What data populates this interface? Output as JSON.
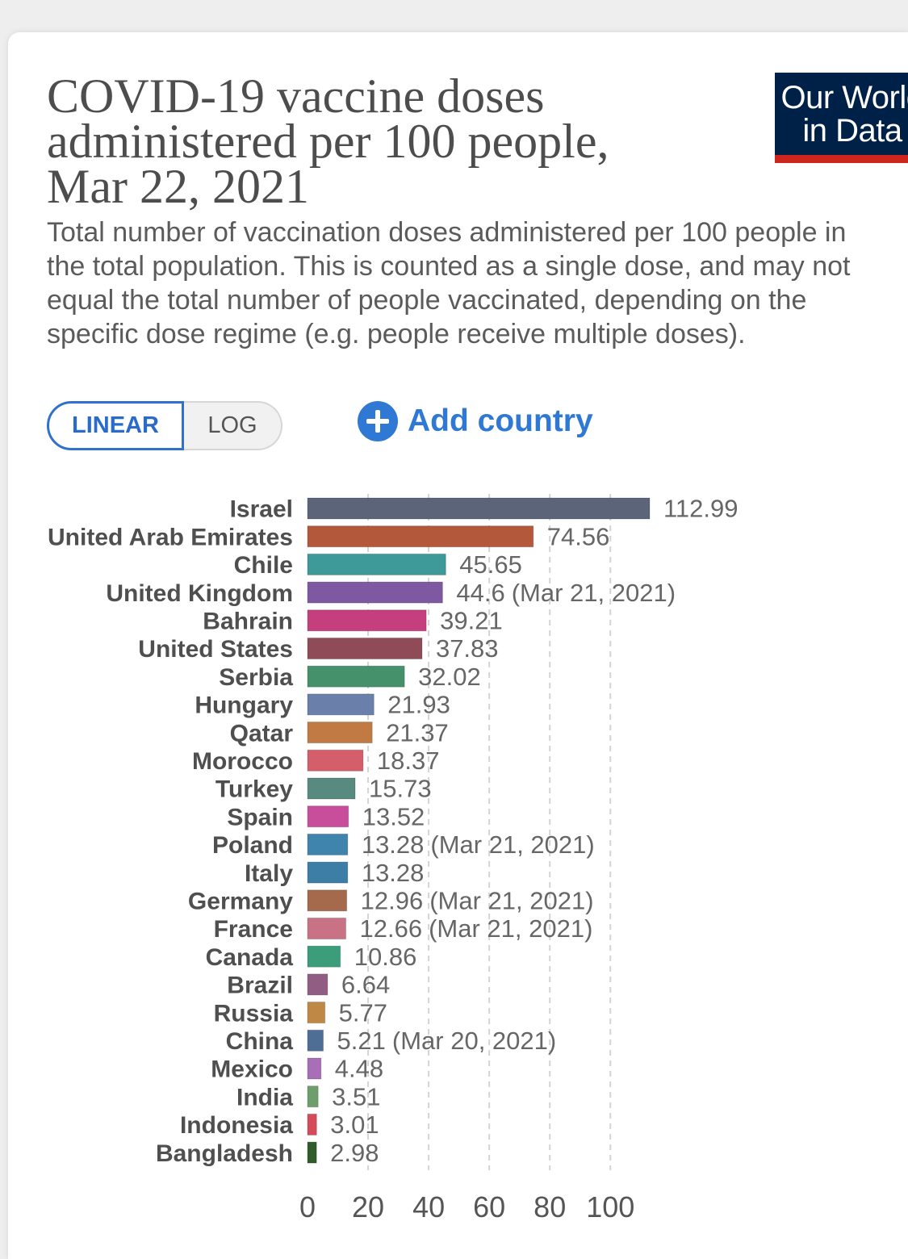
{
  "logo": {
    "line1": "Our World",
    "line2": "in Data",
    "background": "#002147",
    "accent": "#ce261e"
  },
  "controls": {
    "scale_options": [
      {
        "label": "LINEAR",
        "selected": true
      },
      {
        "label": "LOG",
        "selected": false
      }
    ],
    "add_country": {
      "label": "Add country",
      "icon": "plus-circle-icon"
    },
    "accent_color": "#2f79d5"
  },
  "chart_data": {
    "type": "bar",
    "orientation": "horizontal",
    "title": "COVID-19 vaccine doses administered per 100 people, Mar 22, 2021",
    "subtitle": "Total number of vaccination doses administered per 100 people in the total population. This is counted as a single dose, and may not equal the total number of people vaccinated, depending on the specific dose regime (e.g. people receive multiple doses).",
    "categories": [
      "Israel",
      "United Arab Emirates",
      "Chile",
      "United Kingdom",
      "Bahrain",
      "United States",
      "Serbia",
      "Hungary",
      "Qatar",
      "Morocco",
      "Turkey",
      "Spain",
      "Poland",
      "Italy",
      "Germany",
      "France",
      "Canada",
      "Brazil",
      "Russia",
      "China",
      "Mexico",
      "India",
      "Indonesia",
      "Bangladesh"
    ],
    "values": [
      112.99,
      74.56,
      45.65,
      44.6,
      39.21,
      37.83,
      32.02,
      21.93,
      21.37,
      18.37,
      15.73,
      13.52,
      13.28,
      13.28,
      12.96,
      12.66,
      10.86,
      6.64,
      5.77,
      5.21,
      4.48,
      3.51,
      3.01,
      2.98
    ],
    "notes": [
      "",
      "",
      "",
      "(Mar 21, 2021)",
      "",
      "",
      "",
      "",
      "",
      "",
      "",
      "",
      "(Mar 21, 2021)",
      "",
      "(Mar 21, 2021)",
      "(Mar 21, 2021)",
      "",
      "",
      "",
      "(Mar 20, 2021)",
      "",
      "",
      "",
      ""
    ],
    "colors": [
      "#5b6478",
      "#b3583a",
      "#3e9a98",
      "#7e58a1",
      "#c53e7e",
      "#8f4b58",
      "#44916b",
      "#6a80aa",
      "#c27a45",
      "#d45f6b",
      "#588a80",
      "#c84d9a",
      "#3f84ad",
      "#3d7ea6",
      "#a5694c",
      "#c97285",
      "#3c9d7a",
      "#925d82",
      "#c08845",
      "#4f6e95",
      "#a86fb6",
      "#6f9e6d",
      "#d64b5a",
      "#2f5c2a"
    ],
    "xticks": [
      0,
      20,
      40,
      60,
      80,
      100
    ],
    "grid": "vertical dashed",
    "legend": "none"
  }
}
